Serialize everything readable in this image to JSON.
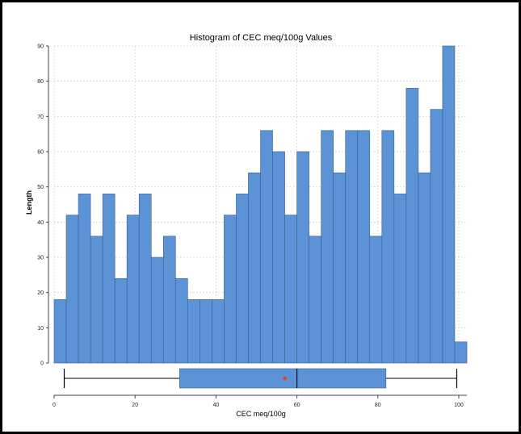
{
  "colors": {
    "bar_fill": "#5b93d6",
    "box_fill": "#5b93d6",
    "mean_marker": "#e8413a",
    "frame": "#000000"
  },
  "chart_data": {
    "type": "bar",
    "title": "Histogram of CEC meq/100g Values",
    "xlabel": "CEC meq/100g",
    "ylabel": "Length",
    "xlim": [
      0,
      102
    ],
    "ylim": [
      0,
      90
    ],
    "bin_width": 3,
    "bin_start": 0,
    "values": [
      18,
      42,
      48,
      36,
      48,
      24,
      42,
      48,
      30,
      36,
      24,
      18,
      18,
      18,
      42,
      48,
      54,
      66,
      60,
      42,
      60,
      36,
      66,
      54,
      66,
      66,
      36,
      66,
      48,
      78,
      54,
      72,
      90,
      6
    ],
    "x_ticks": [
      "0",
      "20",
      "40",
      "60",
      "80",
      "100"
    ],
    "x_tick_values": [
      0,
      20,
      40,
      60,
      80,
      100
    ],
    "y_ticks": [
      "0",
      "10",
      "20",
      "30",
      "40",
      "50",
      "60",
      "70",
      "80",
      "90"
    ],
    "y_tick_values": [
      0,
      10,
      20,
      30,
      40,
      50,
      60,
      70,
      80,
      90
    ],
    "grid": true,
    "boxplot": {
      "min": 2.5,
      "q1": 31,
      "median": 60,
      "mean": 57,
      "q3": 82,
      "max": 99.5
    }
  }
}
